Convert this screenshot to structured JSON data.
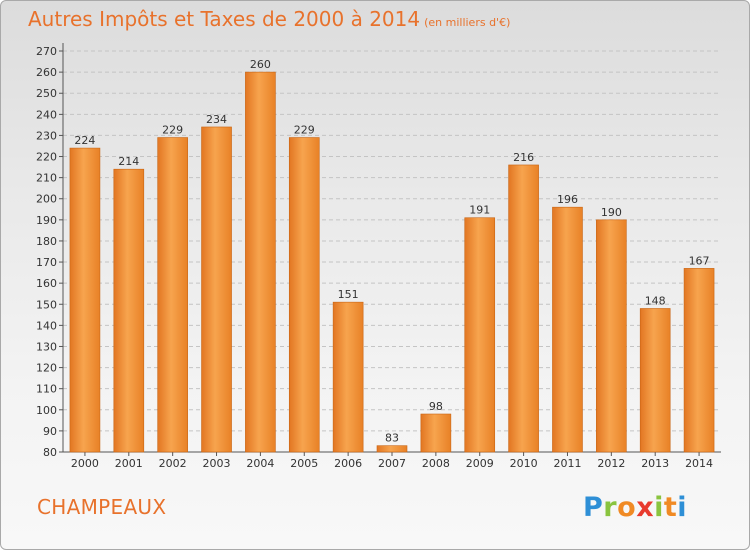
{
  "header": {
    "title": "Autres Impôts et Taxes de 2000 à 2014",
    "unit": "(en milliers d'€)"
  },
  "footer": {
    "commune": "CHAMPEAUX",
    "logo_letters": [
      "P",
      "r",
      "o",
      "x",
      "i",
      "t",
      "i"
    ],
    "logo_colors": [
      "#2e8fd6",
      "#8ac43f",
      "#f08a24",
      "#e83a2e",
      "#8ac43f",
      "#f08a24",
      "#2e8fd6"
    ]
  },
  "chart_data": {
    "type": "bar",
    "title": "Autres Impôts et Taxes de 2000 à 2014",
    "subtitle": "(en milliers d'€)",
    "xlabel": "",
    "ylabel": "",
    "categories": [
      "2000",
      "2001",
      "2002",
      "2003",
      "2004",
      "2005",
      "2006",
      "2007",
      "2008",
      "2009",
      "2010",
      "2011",
      "2012",
      "2013",
      "2014"
    ],
    "values": [
      224,
      214,
      229,
      234,
      260,
      229,
      151,
      83,
      98,
      191,
      216,
      196,
      190,
      148,
      167
    ],
    "ylim": [
      80,
      270
    ],
    "yticks": [
      80,
      90,
      100,
      110,
      120,
      130,
      140,
      150,
      160,
      170,
      180,
      190,
      200,
      210,
      220,
      230,
      240,
      250,
      260,
      270
    ],
    "grid": true,
    "legend": "none",
    "bar_color": "#f08c2e"
  }
}
